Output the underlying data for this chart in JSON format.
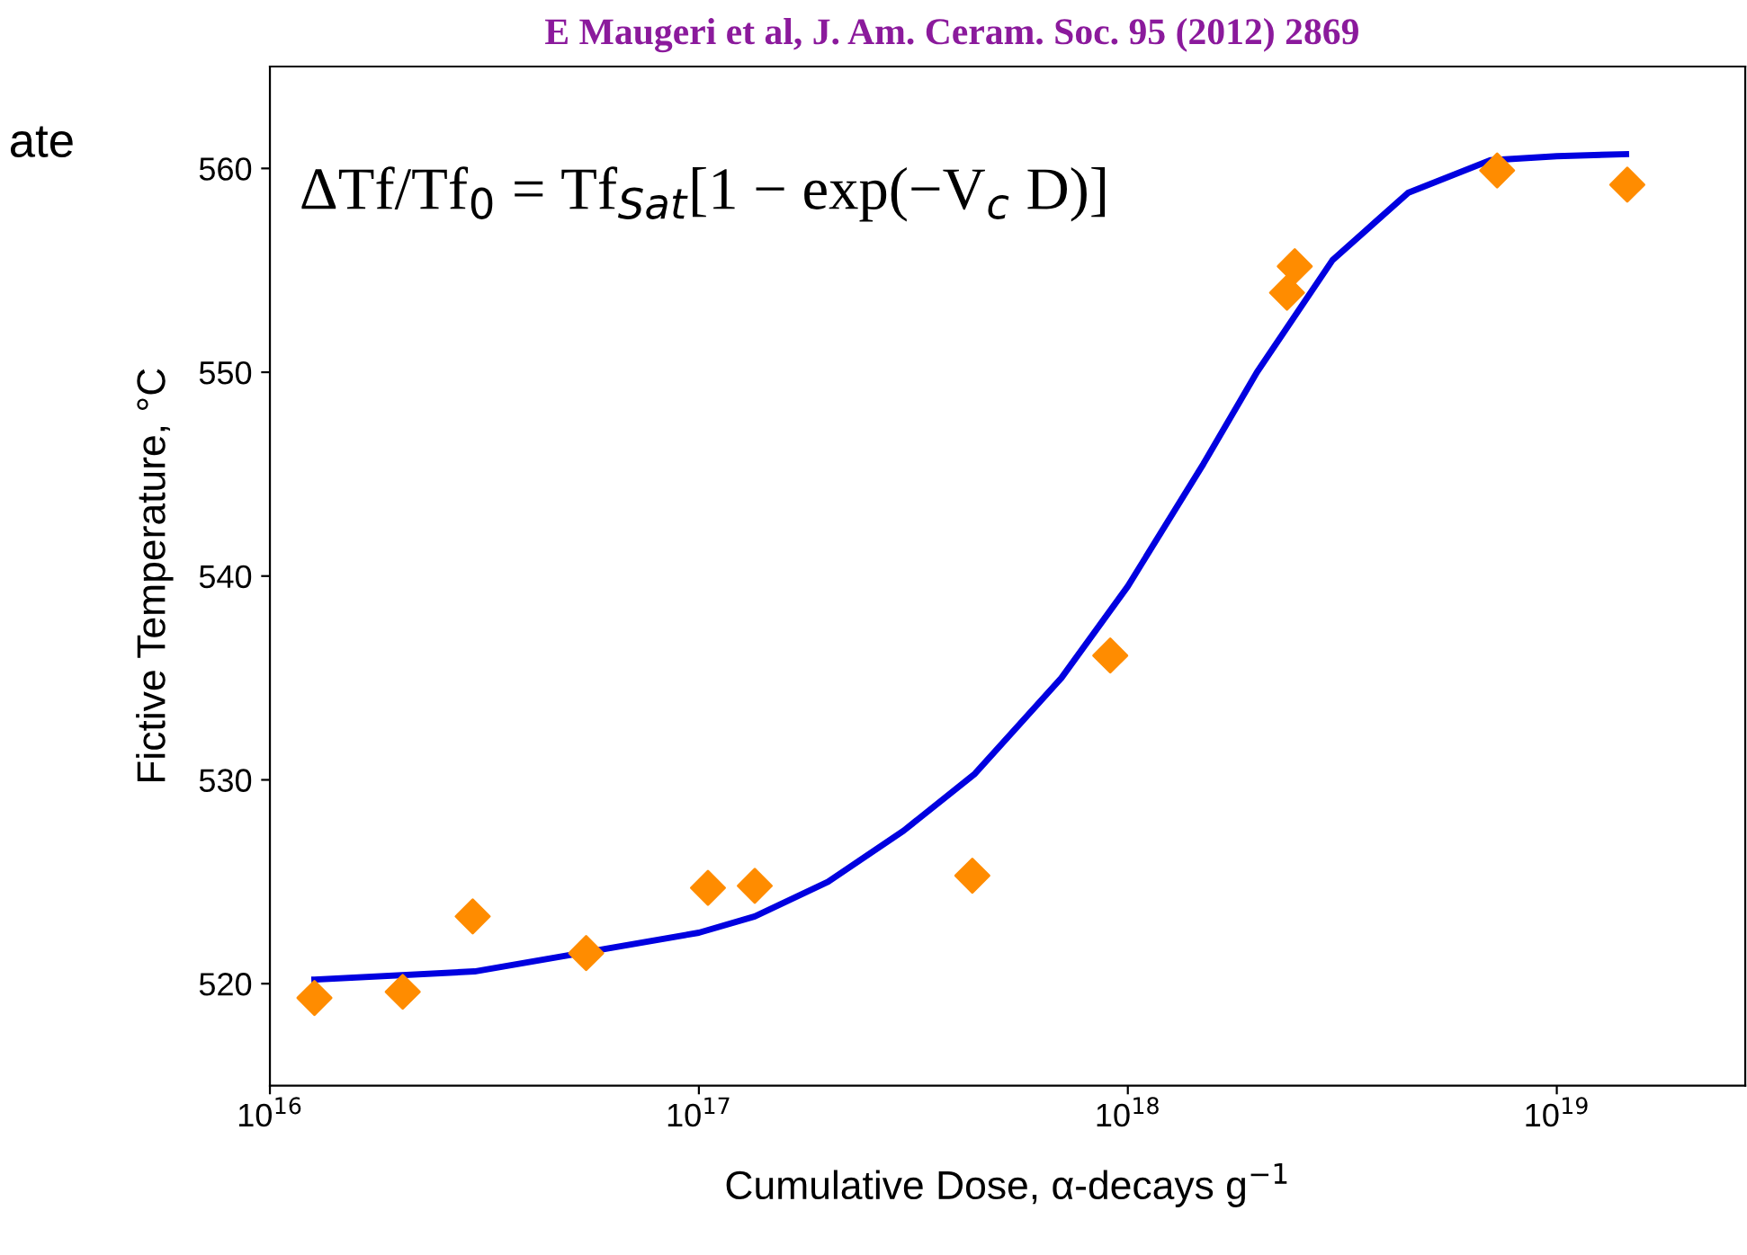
{
  "chart_data": {
    "type": "scatter",
    "title": "E Maugeri et al, J. Am. Ceram. Soc. 95 (2012) 2869",
    "xlabel": "Cumulative Dose, α-decays g$^{−1}$",
    "ylabel": "Fictive Temperature, °C",
    "log": "x",
    "grid": false,
    "xlim": [
      1e+16,
      2.75e+19
    ],
    "xticks": [
      {
        "value": 1e+16,
        "label": "10$^{16}$"
      },
      {
        "value": 1e+17,
        "label": "10$^{17}$"
      },
      {
        "value": 1e+18,
        "label": "10$^{18}$"
      },
      {
        "value": 1e+19,
        "label": "10$^{19}$"
      }
    ],
    "ylim": [
      515,
      565
    ],
    "yticks": [
      520,
      530,
      540,
      550,
      560
    ],
    "annotations": [
      "ΔTf/Tf$_{0}$ = Tf$_{Sat}$[1 − exp(−V$_{c}$ D)]",
      "ate"
    ],
    "series": [
      {
        "color": "#ff8c00",
        "marker": "diamond",
        "x": [
          1.27e+16,
          2.04e+16,
          2.97e+16,
          5.46e+16,
          1.05e+17,
          1.35e+17,
          4.34e+17,
          9.1e+17,
          2.35e+18,
          2.45e+18,
          7.26e+18,
          1.46e+19
        ],
        "values": [
          519.3,
          519.6,
          523.3,
          521.5,
          524.7,
          524.8,
          525.3,
          536.1,
          553.9,
          555.2,
          559.9,
          559.2
        ]
      },
      {
        "type": "line",
        "color": "#0000e0",
        "line_style": "solid",
        "x": [
          1.27e+16,
          3e+16,
          1e+17,
          1.35e+17,
          2e+17,
          3e+17,
          4.4e+17,
          7e+17,
          1e+18,
          1.5e+18,
          2e+18,
          3e+18,
          4.5e+18,
          7e+18,
          1e+19,
          1.45e+19
        ],
        "values": [
          520.2,
          520.6,
          522.5,
          523.3,
          525,
          527.5,
          530.3,
          535,
          539.5,
          545.5,
          550,
          555.5,
          558.8,
          560.4,
          560.6,
          560.7
        ]
      }
    ]
  }
}
